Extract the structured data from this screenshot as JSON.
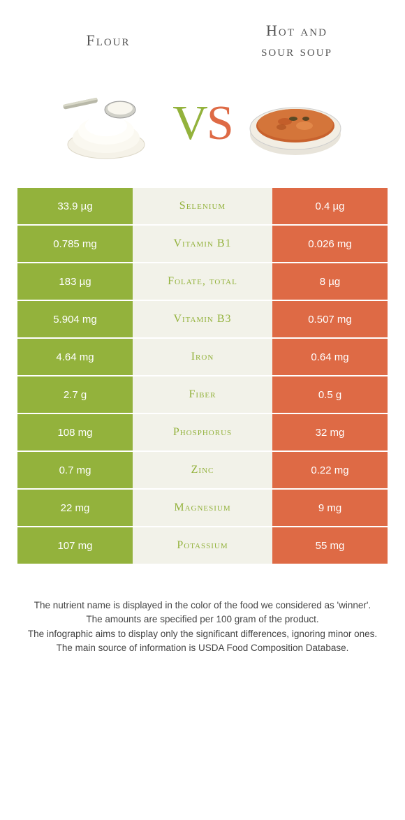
{
  "header": {
    "left_title": "Flour",
    "right_title": "Hot and\nsour soup"
  },
  "vs": {
    "v": "V",
    "s": "S"
  },
  "colors": {
    "left": "#93b23c",
    "right": "#de6a45",
    "mid_bg": "#f2f2e9",
    "left_text_alt": "#80a033",
    "right_text_alt": "#c85a3a"
  },
  "rows": [
    {
      "left": "33.9 µg",
      "name": "Selenium",
      "right": "0.4 µg",
      "winner": "left"
    },
    {
      "left": "0.785 mg",
      "name": "Vitamin B1",
      "right": "0.026 mg",
      "winner": "left"
    },
    {
      "left": "183 µg",
      "name": "Folate, total",
      "right": "8 µg",
      "winner": "left"
    },
    {
      "left": "5.904 mg",
      "name": "Vitamin B3",
      "right": "0.507 mg",
      "winner": "left"
    },
    {
      "left": "4.64 mg",
      "name": "Iron",
      "right": "0.64 mg",
      "winner": "left"
    },
    {
      "left": "2.7 g",
      "name": "Fiber",
      "right": "0.5 g",
      "winner": "left"
    },
    {
      "left": "108 mg",
      "name": "Phosphorus",
      "right": "32 mg",
      "winner": "left"
    },
    {
      "left": "0.7 mg",
      "name": "Zinc",
      "right": "0.22 mg",
      "winner": "left"
    },
    {
      "left": "22 mg",
      "name": "Magnesium",
      "right": "9 mg",
      "winner": "left"
    },
    {
      "left": "107 mg",
      "name": "Potassium",
      "right": "55 mg",
      "winner": "left"
    }
  ],
  "footer": {
    "line1": "The nutrient name is displayed in the color of the food we considered as 'winner'.",
    "line2": "The amounts are specified per 100 gram of the product.",
    "line3": "The infographic aims to display only the significant differences, ignoring minor ones.",
    "line4": "The main source of information is USDA Food Composition Database."
  }
}
